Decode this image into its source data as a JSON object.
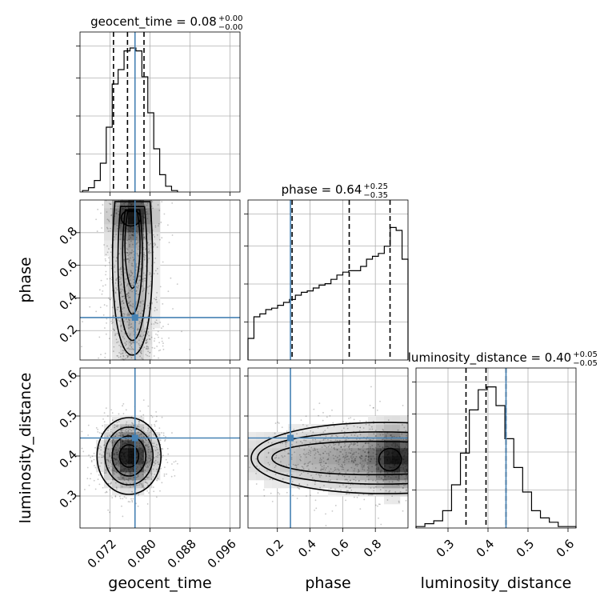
{
  "chart_data": {
    "type": "corner",
    "parameters": [
      "geocent_time",
      "phase",
      "luminosity_distance"
    ],
    "axis_labels": {
      "geocent_time": "geocent_time",
      "phase": "phase",
      "luminosity_distance": "luminosity_distance"
    },
    "ranges": {
      "geocent_time": [
        0.066,
        0.098
      ],
      "phase": [
        0.02,
        1.0
      ],
      "luminosity_distance": [
        0.22,
        0.62
      ]
    },
    "ticks": {
      "geocent_time": [
        "0.072",
        "0.080",
        "0.088",
        "0.096"
      ],
      "phase": [
        "0.2",
        "0.4",
        "0.6",
        "0.8"
      ],
      "luminosity_distance": [
        "0.3",
        "0.4",
        "0.5",
        "0.6"
      ]
    },
    "truths": {
      "geocent_time": 0.077,
      "phase": 0.28,
      "luminosity_distance": 0.445
    },
    "titles": [
      {
        "param": "geocent_time",
        "main": "geocent_time = 0.08",
        "plus": "+0.00",
        "minus": "−0.00",
        "quantiles": [
          0.0727,
          0.0755,
          0.0788
        ]
      },
      {
        "param": "phase",
        "main": "phase = 0.64",
        "plus": "+0.25",
        "minus": "−0.35",
        "quantiles": [
          0.29,
          0.64,
          0.89
        ]
      },
      {
        "param": "luminosity_distance",
        "main": "luminosity_distance = 0.40",
        "plus": "+0.05",
        "minus": "−0.05",
        "quantiles": [
          0.345,
          0.395,
          0.445
        ]
      }
    ],
    "histograms": {
      "geocent_time": [
        0.01,
        0.03,
        0.08,
        0.2,
        0.45,
        0.75,
        0.85,
        0.98,
        1.0,
        0.98,
        0.8,
        0.55,
        0.3,
        0.12,
        0.04,
        0.01
      ],
      "phase": [
        0.15,
        0.3,
        0.32,
        0.35,
        0.36,
        0.38,
        0.4,
        0.42,
        0.45,
        0.47,
        0.48,
        0.5,
        0.52,
        0.53,
        0.56,
        0.59,
        0.61,
        0.62,
        0.62,
        0.65,
        0.7,
        0.72,
        0.74,
        0.79,
        0.92,
        0.9,
        0.7
      ],
      "luminosity_distance": [
        0.01,
        0.03,
        0.05,
        0.12,
        0.3,
        0.52,
        0.82,
        0.96,
        0.98,
        0.85,
        0.62,
        0.42,
        0.25,
        0.12,
        0.07,
        0.04,
        0.01,
        0.01
      ]
    },
    "grid": true
  }
}
